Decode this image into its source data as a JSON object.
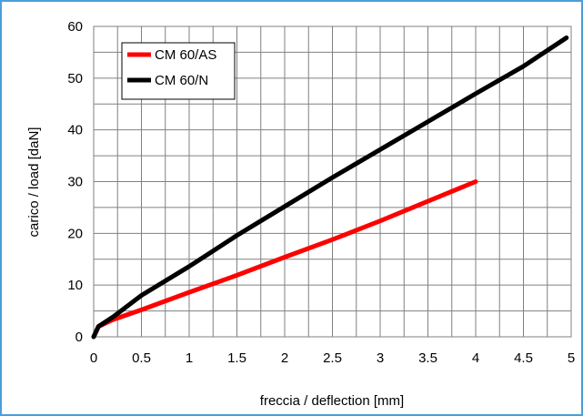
{
  "chart_data": {
    "type": "line",
    "xlabel": "freccia / deflection [mm]",
    "ylabel": "carico / load [daN]",
    "xlim": [
      0,
      5
    ],
    "ylim": [
      0,
      60
    ],
    "xticks": [
      0,
      0.5,
      1,
      1.5,
      2,
      2.5,
      3,
      3.5,
      4,
      4.5,
      5
    ],
    "yticks": [
      0,
      10,
      20,
      30,
      40,
      50,
      60
    ],
    "xtick_labels": [
      "0",
      "0.5",
      "1",
      "1.5",
      "2",
      "2.5",
      "3",
      "3.5",
      "4",
      "4.5",
      "5"
    ],
    "ytick_labels": [
      "0",
      "10",
      "20",
      "30",
      "40",
      "50",
      "60"
    ],
    "grid": true,
    "legend_position": "top-left",
    "series": [
      {
        "name": "CM 60/AS",
        "color": "#ff0000",
        "x": [
          0,
          0.05,
          0.2,
          0.5,
          1.0,
          1.5,
          2.0,
          2.5,
          3.0,
          3.5,
          4.0
        ],
        "y": [
          0,
          2.0,
          3.3,
          5.2,
          8.6,
          11.9,
          15.4,
          18.8,
          22.4,
          26.2,
          30.0
        ]
      },
      {
        "name": "CM 60/N",
        "color": "#000000",
        "x": [
          0,
          0.05,
          0.2,
          0.5,
          1.0,
          1.2,
          1.5,
          2.0,
          2.5,
          3.0,
          3.5,
          4.0,
          4.5,
          4.95
        ],
        "y": [
          0,
          2.0,
          3.8,
          8.0,
          13.6,
          16.0,
          19.6,
          25.2,
          30.8,
          36.2,
          41.6,
          47.0,
          52.3,
          57.8
        ]
      }
    ]
  }
}
